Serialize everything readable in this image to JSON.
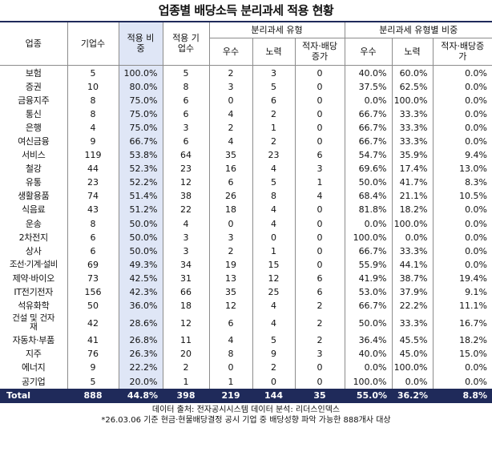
{
  "title": "업종별 배당소득 분리과세 적용 현황",
  "header": {
    "industry": "업종",
    "company_count": "기업수",
    "apply_ratio": "적용 비중",
    "apply_count": "적용 기업수",
    "sep_type": "분리과세 유형",
    "sep_type_ratio": "분리과세 유형별 비중",
    "excellent": "우수",
    "effort": "노력",
    "deficit": "적자·배당증가"
  },
  "rows": [
    {
      "industry": "보험",
      "companies": "5",
      "ratio": "100.0%",
      "applied": "5",
      "excellent": "2",
      "effort": "3",
      "deficit": "0",
      "p_excellent": "40.0%",
      "p_effort": "60.0%",
      "p_deficit": "0.0%"
    },
    {
      "industry": "증권",
      "companies": "10",
      "ratio": "80.0%",
      "applied": "8",
      "excellent": "3",
      "effort": "5",
      "deficit": "0",
      "p_excellent": "37.5%",
      "p_effort": "62.5%",
      "p_deficit": "0.0%"
    },
    {
      "industry": "금융지주",
      "companies": "8",
      "ratio": "75.0%",
      "applied": "6",
      "excellent": "0",
      "effort": "6",
      "deficit": "0",
      "p_excellent": "0.0%",
      "p_effort": "100.0%",
      "p_deficit": "0.0%"
    },
    {
      "industry": "통신",
      "companies": "8",
      "ratio": "75.0%",
      "applied": "6",
      "excellent": "4",
      "effort": "2",
      "deficit": "0",
      "p_excellent": "66.7%",
      "p_effort": "33.3%",
      "p_deficit": "0.0%"
    },
    {
      "industry": "은행",
      "companies": "4",
      "ratio": "75.0%",
      "applied": "3",
      "excellent": "2",
      "effort": "1",
      "deficit": "0",
      "p_excellent": "66.7%",
      "p_effort": "33.3%",
      "p_deficit": "0.0%"
    },
    {
      "industry": "여신금융",
      "companies": "9",
      "ratio": "66.7%",
      "applied": "6",
      "excellent": "4",
      "effort": "2",
      "deficit": "0",
      "p_excellent": "66.7%",
      "p_effort": "33.3%",
      "p_deficit": "0.0%"
    },
    {
      "industry": "서비스",
      "companies": "119",
      "ratio": "53.8%",
      "applied": "64",
      "excellent": "35",
      "effort": "23",
      "deficit": "6",
      "p_excellent": "54.7%",
      "p_effort": "35.9%",
      "p_deficit": "9.4%"
    },
    {
      "industry": "철강",
      "companies": "44",
      "ratio": "52.3%",
      "applied": "23",
      "excellent": "16",
      "effort": "4",
      "deficit": "3",
      "p_excellent": "69.6%",
      "p_effort": "17.4%",
      "p_deficit": "13.0%"
    },
    {
      "industry": "유통",
      "companies": "23",
      "ratio": "52.2%",
      "applied": "12",
      "excellent": "6",
      "effort": "5",
      "deficit": "1",
      "p_excellent": "50.0%",
      "p_effort": "41.7%",
      "p_deficit": "8.3%"
    },
    {
      "industry": "생활용품",
      "companies": "74",
      "ratio": "51.4%",
      "applied": "38",
      "excellent": "26",
      "effort": "8",
      "deficit": "4",
      "p_excellent": "68.4%",
      "p_effort": "21.1%",
      "p_deficit": "10.5%"
    },
    {
      "industry": "식음료",
      "companies": "43",
      "ratio": "51.2%",
      "applied": "22",
      "excellent": "18",
      "effort": "4",
      "deficit": "0",
      "p_excellent": "81.8%",
      "p_effort": "18.2%",
      "p_deficit": "0.0%"
    },
    {
      "industry": "운송",
      "companies": "8",
      "ratio": "50.0%",
      "applied": "4",
      "excellent": "0",
      "effort": "4",
      "deficit": "0",
      "p_excellent": "0.0%",
      "p_effort": "100.0%",
      "p_deficit": "0.0%"
    },
    {
      "industry": "2차전지",
      "companies": "6",
      "ratio": "50.0%",
      "applied": "3",
      "excellent": "3",
      "effort": "0",
      "deficit": "0",
      "p_excellent": "100.0%",
      "p_effort": "0.0%",
      "p_deficit": "0.0%"
    },
    {
      "industry": "상사",
      "companies": "6",
      "ratio": "50.0%",
      "applied": "3",
      "excellent": "2",
      "effort": "1",
      "deficit": "0",
      "p_excellent": "66.7%",
      "p_effort": "33.3%",
      "p_deficit": "0.0%"
    },
    {
      "industry": "조선·기계·설비",
      "companies": "69",
      "ratio": "49.3%",
      "applied": "34",
      "excellent": "19",
      "effort": "15",
      "deficit": "0",
      "p_excellent": "55.9%",
      "p_effort": "44.1%",
      "p_deficit": "0.0%"
    },
    {
      "industry": "제약·바이오",
      "companies": "73",
      "ratio": "42.5%",
      "applied": "31",
      "excellent": "13",
      "effort": "12",
      "deficit": "6",
      "p_excellent": "41.9%",
      "p_effort": "38.7%",
      "p_deficit": "19.4%"
    },
    {
      "industry": "IT전기전자",
      "companies": "156",
      "ratio": "42.3%",
      "applied": "66",
      "excellent": "35",
      "effort": "25",
      "deficit": "6",
      "p_excellent": "53.0%",
      "p_effort": "37.9%",
      "p_deficit": "9.1%"
    },
    {
      "industry": "석유화학",
      "companies": "50",
      "ratio": "36.0%",
      "applied": "18",
      "excellent": "12",
      "effort": "4",
      "deficit": "2",
      "p_excellent": "66.7%",
      "p_effort": "22.2%",
      "p_deficit": "11.1%"
    },
    {
      "industry": "건설 및 건자재",
      "companies": "42",
      "ratio": "28.6%",
      "applied": "12",
      "excellent": "6",
      "effort": "4",
      "deficit": "2",
      "p_excellent": "50.0%",
      "p_effort": "33.3%",
      "p_deficit": "16.7%"
    },
    {
      "industry": "자동차·부품",
      "companies": "41",
      "ratio": "26.8%",
      "applied": "11",
      "excellent": "4",
      "effort": "5",
      "deficit": "2",
      "p_excellent": "36.4%",
      "p_effort": "45.5%",
      "p_deficit": "18.2%"
    },
    {
      "industry": "지주",
      "companies": "76",
      "ratio": "26.3%",
      "applied": "20",
      "excellent": "8",
      "effort": "9",
      "deficit": "3",
      "p_excellent": "40.0%",
      "p_effort": "45.0%",
      "p_deficit": "15.0%"
    },
    {
      "industry": "에너지",
      "companies": "9",
      "ratio": "22.2%",
      "applied": "2",
      "excellent": "0",
      "effort": "2",
      "deficit": "0",
      "p_excellent": "0.0%",
      "p_effort": "100.0%",
      "p_deficit": "0.0%"
    },
    {
      "industry": "공기업",
      "companies": "5",
      "ratio": "20.0%",
      "applied": "1",
      "excellent": "1",
      "effort": "0",
      "deficit": "0",
      "p_excellent": "100.0%",
      "p_effort": "0.0%",
      "p_deficit": "0.0%"
    }
  ],
  "total": {
    "industry": "Total",
    "companies": "888",
    "ratio": "44.8%",
    "applied": "398",
    "excellent": "219",
    "effort": "144",
    "deficit": "35",
    "p_excellent": "55.0%",
    "p_effort": "36.2%",
    "p_deficit": "8.8%"
  },
  "footer": {
    "source": "데이터 출처: 전자공시시스템 데이터 분석: 리더스인덱스",
    "note": "*26.03.06 기준 현금·현물배당결정 공시 기업 중 배당성향 파악 가능한 888개사 대상"
  },
  "colors": {
    "navy": "#1f2a5a",
    "highlight": "#dfe6f6"
  }
}
